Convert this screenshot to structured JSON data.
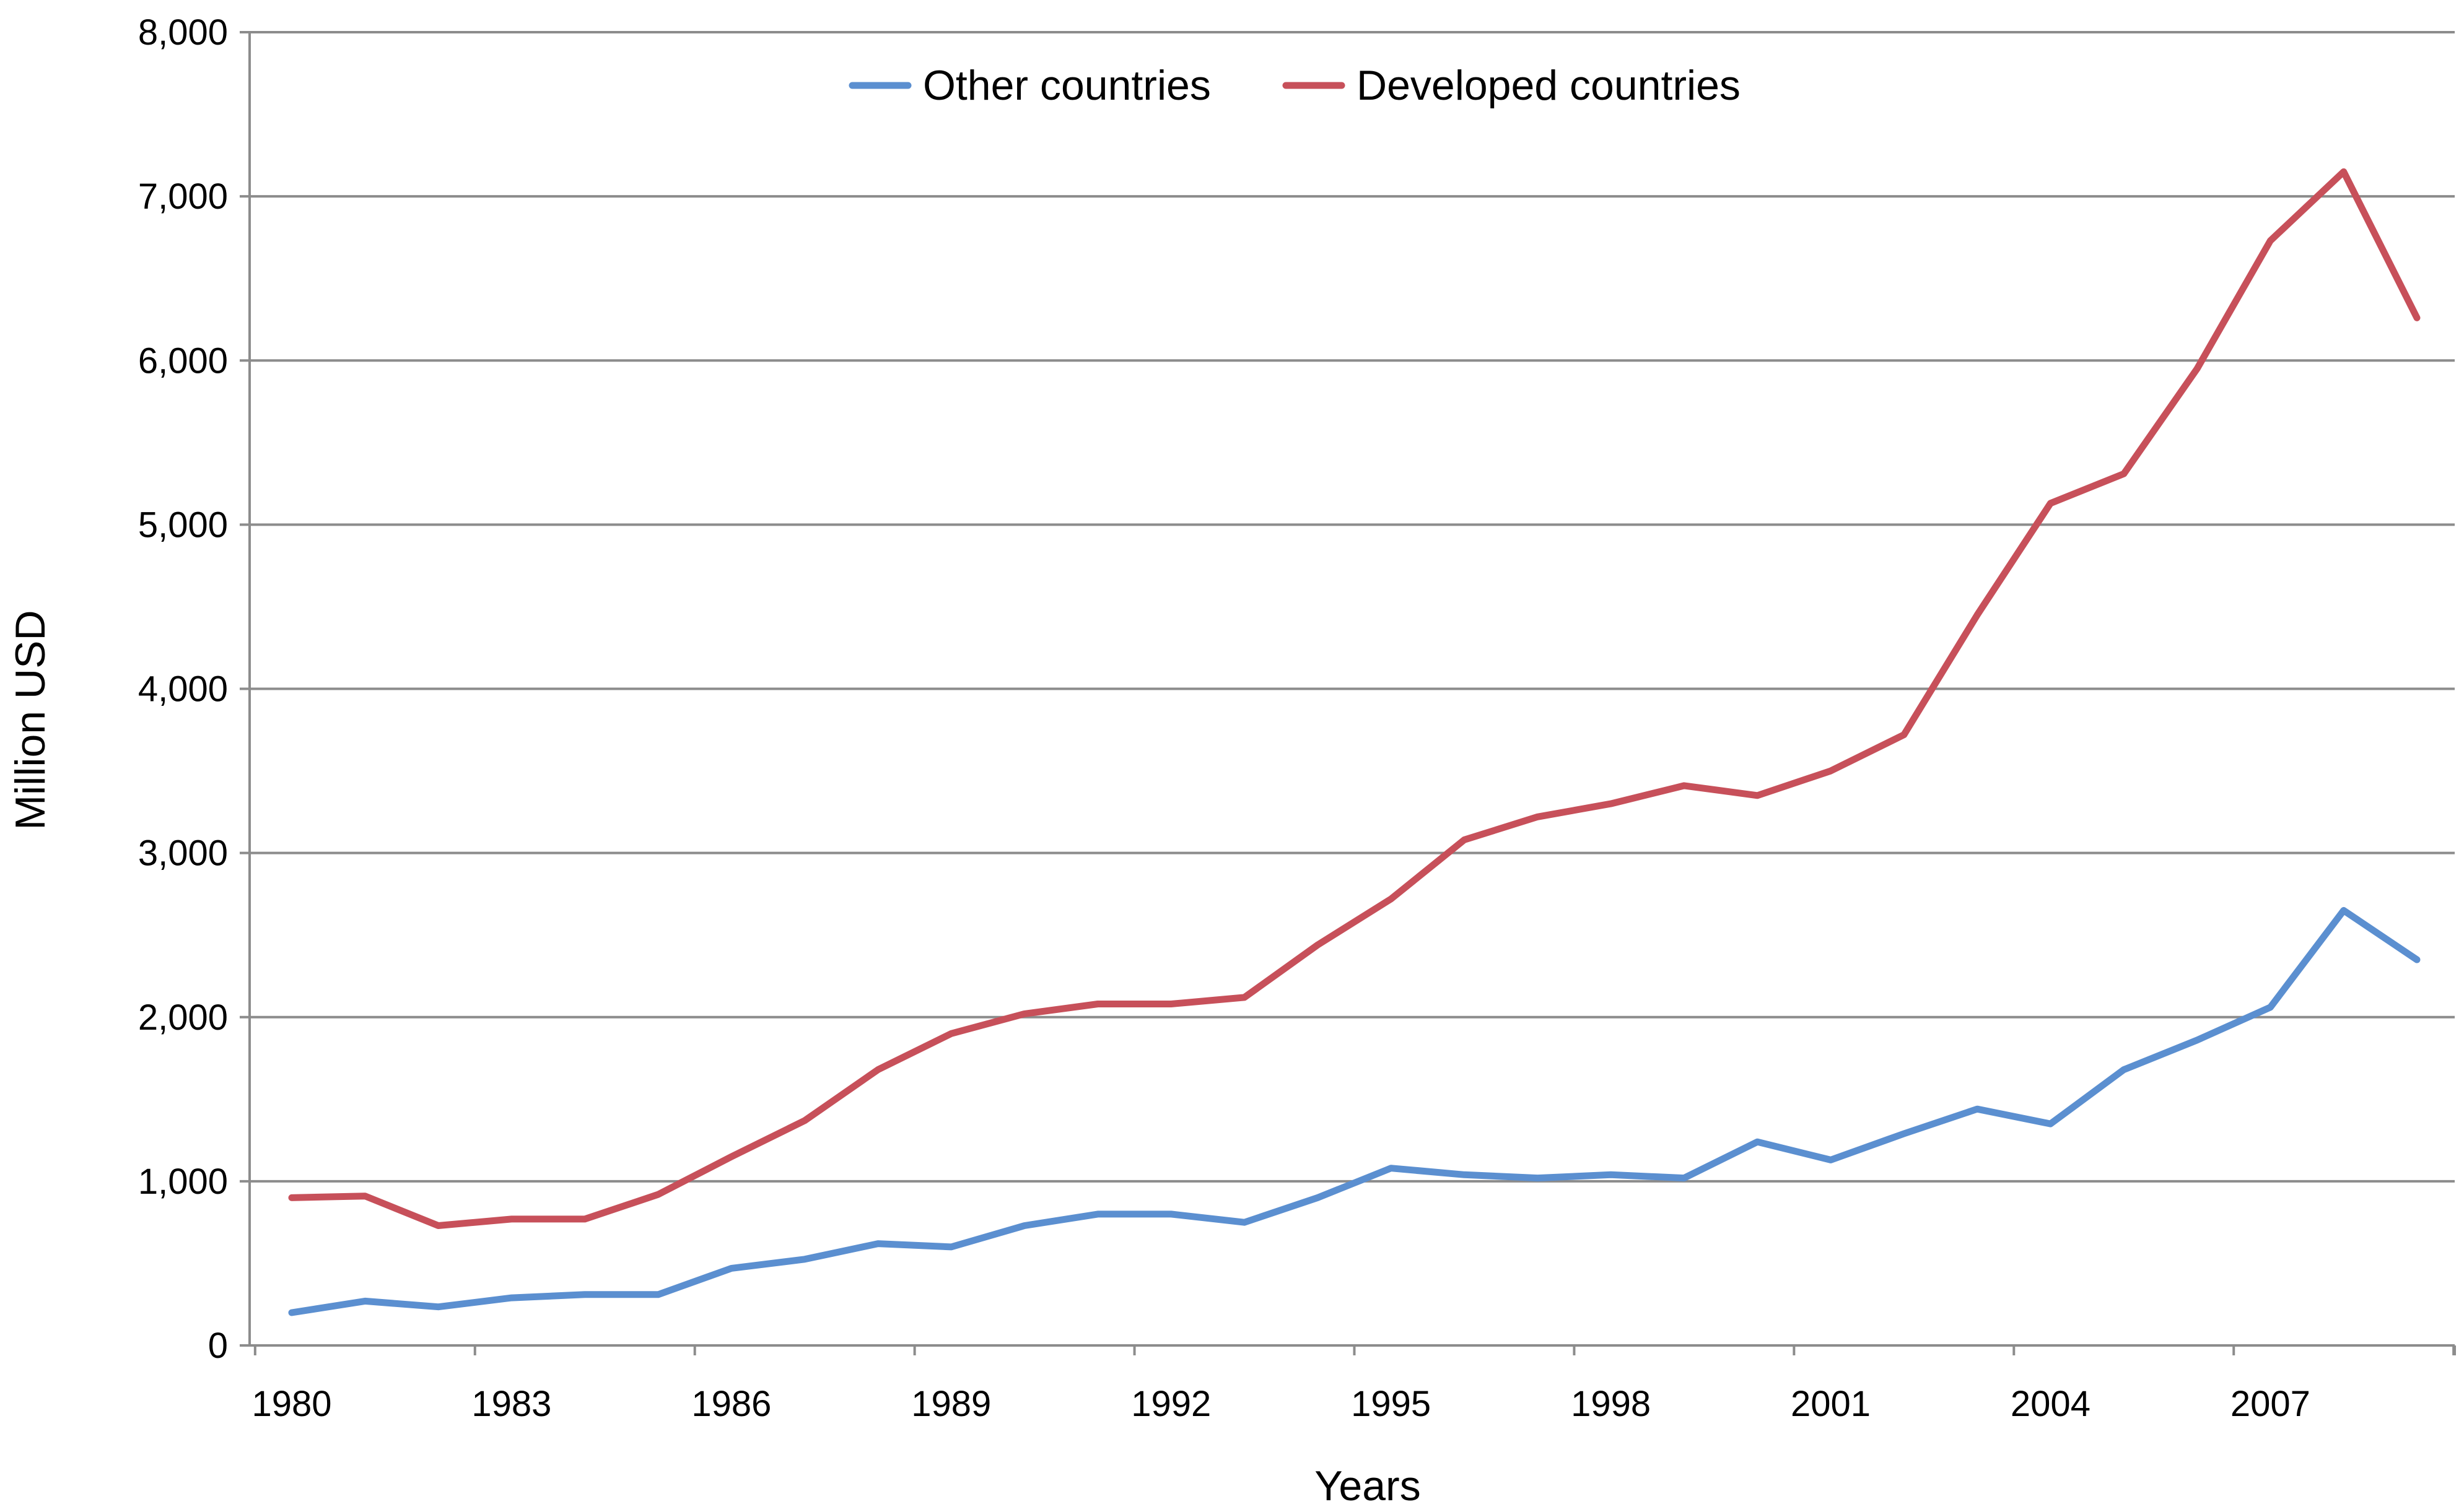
{
  "chart_data": {
    "type": "line",
    "title": "",
    "xlabel": "Years",
    "ylabel": "Million USD",
    "ylim": [
      0,
      8000
    ],
    "y_ticks": [
      0,
      1000,
      2000,
      3000,
      4000,
      5000,
      6000,
      7000,
      8000
    ],
    "y_tick_labels": [
      "0",
      "1,000",
      "2,000",
      "3,000",
      "4,000",
      "5,000",
      "6,000",
      "7,000",
      "8,000"
    ],
    "x_tick_labels": [
      "1980",
      "1983",
      "1986",
      "1989",
      "1992",
      "1995",
      "1998",
      "2001",
      "2004",
      "2007"
    ],
    "x": [
      1980,
      1981,
      1982,
      1983,
      1984,
      1985,
      1986,
      1987,
      1988,
      1989,
      1990,
      1991,
      1992,
      1993,
      1994,
      1995,
      1996,
      1997,
      1998,
      1999,
      2000,
      2001,
      2002,
      2003,
      2004,
      2005,
      2006,
      2007,
      2008,
      2009
    ],
    "grid": true,
    "legend_position": "top-center",
    "series": [
      {
        "name": "Other countries",
        "color": "#5b8fd0",
        "values": [
          200,
          270,
          235,
          290,
          310,
          310,
          470,
          525,
          620,
          600,
          730,
          800,
          800,
          750,
          900,
          1080,
          1040,
          1020,
          1040,
          1020,
          1240,
          1130,
          1290,
          1440,
          1350,
          1680,
          1860,
          2060,
          2650,
          2350
        ]
      },
      {
        "name": "Developed countries",
        "color": "#c7505a",
        "values": [
          900,
          910,
          730,
          770,
          770,
          920,
          1150,
          1370,
          1680,
          1900,
          2020,
          2080,
          2080,
          2120,
          2440,
          2720,
          3080,
          3220,
          3300,
          3410,
          3350,
          3500,
          3720,
          4450,
          5130,
          5310,
          5950,
          6730,
          7150,
          6260
        ]
      }
    ]
  }
}
